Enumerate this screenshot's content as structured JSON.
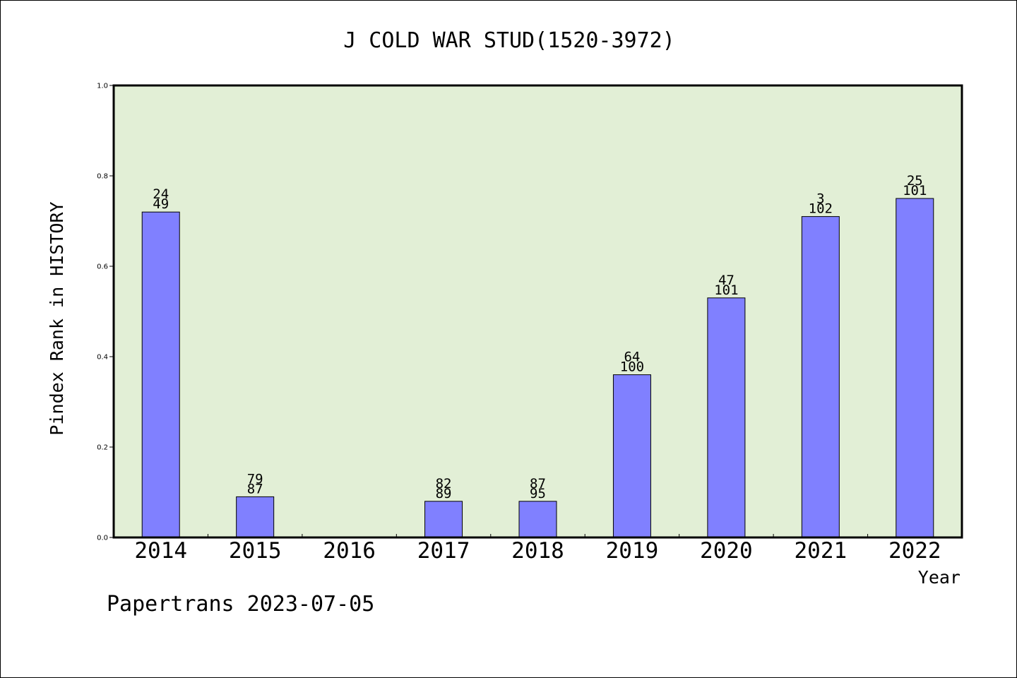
{
  "chart_data": {
    "type": "bar",
    "title": "J COLD WAR STUD(1520-3972)",
    "xlabel": "Year",
    "ylabel": "Pindex Rank in HISTORY",
    "categories": [
      "2014",
      "2015",
      "2016",
      "2017",
      "2018",
      "2019",
      "2020",
      "2021",
      "2022"
    ],
    "values": [
      0.72,
      0.09,
      null,
      0.08,
      0.08,
      0.36,
      0.53,
      0.71,
      0.75
    ],
    "labels_top": [
      "24",
      "79",
      "",
      "82",
      "87",
      "64",
      "47",
      "3",
      "25"
    ],
    "labels_bottom": [
      "49",
      "87",
      "",
      "89",
      "95",
      "100",
      "101",
      "102",
      "101"
    ],
    "ylim": [
      0,
      1.0
    ],
    "yticks": [
      "0.0",
      "0.2",
      "0.4",
      "0.6",
      "0.8",
      "1.0"
    ],
    "grid": false,
    "legend": "none",
    "colors": {
      "plot_background": "#e2efd6",
      "bar_fill": "#8080ff",
      "bar_stroke": "#000000",
      "axis": "#000000"
    }
  },
  "footer": "Papertrans 2023-07-05"
}
